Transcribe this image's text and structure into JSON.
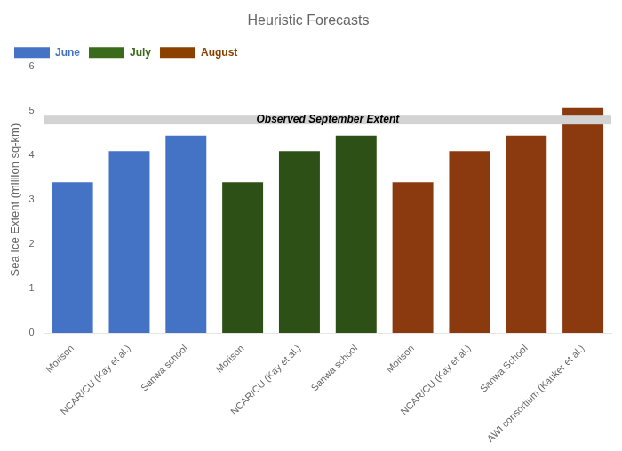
{
  "chart_data": {
    "type": "bar",
    "title": "Heuristic Forecasts",
    "ylabel": "Sea Ice Extent (million sq-km)",
    "categories": [
      "Morison",
      "NCAR/CU (Kay et al.)",
      "Sanwa school",
      "Morison",
      "NCAR/CU (Kay et al.)",
      "Sanwa school",
      "Morison",
      "NCAR/CU (Kay et al.)",
      "Sanwa School",
      "AWI consortium (Kauker et al.)"
    ],
    "values": [
      3.4,
      4.1,
      4.45,
      3.4,
      4.1,
      4.45,
      3.4,
      4.1,
      4.45,
      5.07
    ],
    "colors": [
      "#4472C4",
      "#4472C4",
      "#4472C4",
      "#2D5016",
      "#2D5016",
      "#2D5016",
      "#8B3A0F",
      "#8B3A0F",
      "#8B3A0F",
      "#8B3A0F"
    ],
    "ylim": [
      0,
      6
    ],
    "yticks": [
      0,
      1,
      2,
      3,
      4,
      5,
      6
    ],
    "grid": false,
    "legend": "upper left",
    "legend_entries": [
      {
        "name": "June",
        "color": "#4472C4"
      },
      {
        "name": "July",
        "color": "#3A6B1A"
      },
      {
        "name": "August",
        "color": "#8B4000"
      }
    ],
    "annotations": [
      {
        "y": 4.8,
        "text": "Observed September Extent",
        "color": "#D3D3D3"
      }
    ]
  }
}
